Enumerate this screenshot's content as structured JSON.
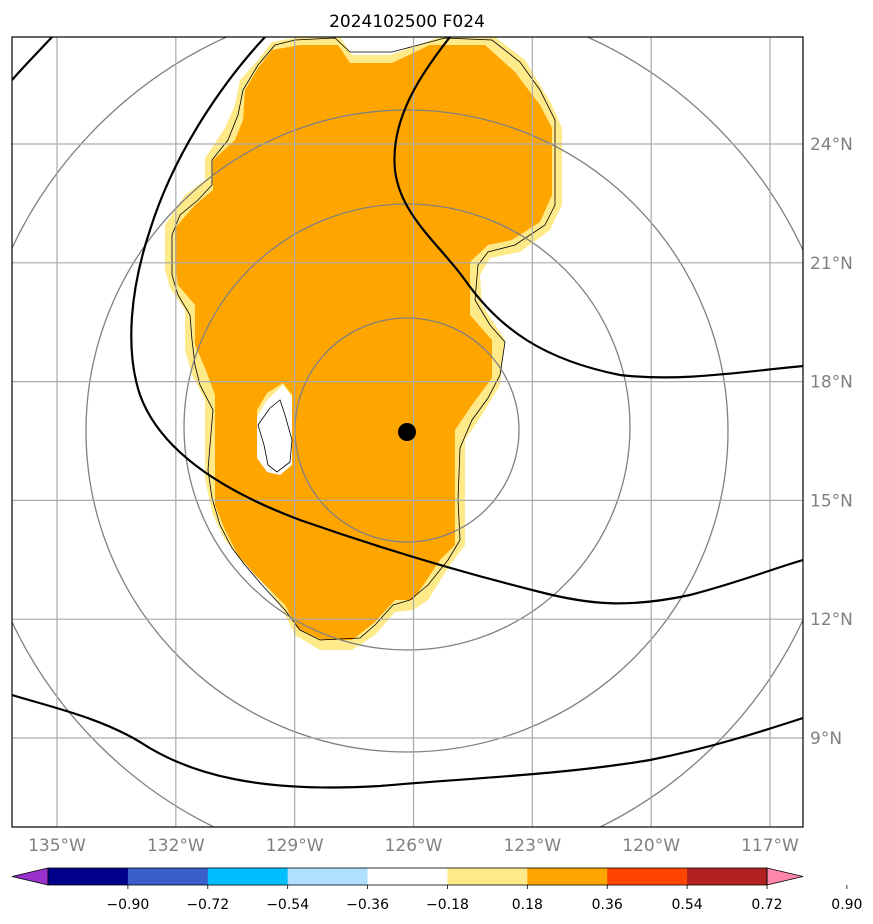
{
  "title": "2024102500 F024",
  "map": {
    "lon_range": [
      -136.0,
      -116.0
    ],
    "lat_range": [
      6.5,
      26.5
    ],
    "lon_ticks": [
      {
        "value": -135,
        "label": "135°W"
      },
      {
        "value": -132,
        "label": "132°W"
      },
      {
        "value": -129,
        "label": "129°W"
      },
      {
        "value": -126,
        "label": "126°W"
      },
      {
        "value": -123,
        "label": "123°W"
      },
      {
        "value": -120,
        "label": "120°W"
      },
      {
        "value": -117,
        "label": "117°W"
      }
    ],
    "lat_ticks": [
      {
        "value": 9,
        "label": "9°N"
      },
      {
        "value": 12,
        "label": "12°N"
      },
      {
        "value": 15,
        "label": "15°N"
      },
      {
        "value": 18,
        "label": "18°N"
      },
      {
        "value": 21,
        "label": "21°N"
      },
      {
        "value": 24,
        "label": "24°N"
      }
    ],
    "center_marker": {
      "lon": -125.85,
      "lat": 16.75
    },
    "range_rings_deg": [
      2.8,
      5.5,
      8.3,
      11.0
    ],
    "gridline_color": "#aaaaaa",
    "ring_color": "#808080",
    "shading_color_inner": "#ffa500",
    "shading_color_edge": "#ffea8a"
  },
  "colorbar": {
    "colors": [
      "#9932cc",
      "#00008b",
      "#3a5fcd",
      "#00bfff",
      "#b0e0ff",
      "#ffffff",
      "#ffea8a",
      "#ffa500",
      "#ff4500",
      "#b22222",
      "#ff88aa"
    ],
    "levels": [
      "−0.90",
      "−0.72",
      "−0.54",
      "−0.36",
      "−0.18",
      "0.18",
      "0.36",
      "0.54",
      "0.72",
      "0.90"
    ]
  }
}
